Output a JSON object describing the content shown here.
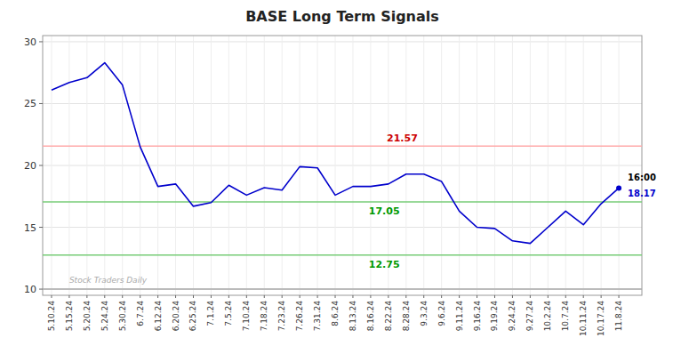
{
  "chart_data": {
    "type": "line",
    "title": "BASE Long Term Signals",
    "color": "#0000cc",
    "grid": true,
    "ylim": [
      9.5,
      30.5
    ],
    "yticks": [
      10,
      15,
      20,
      25,
      30
    ],
    "categories": [
      "5.10.24",
      "5.15.24",
      "5.20.24",
      "5.24.24",
      "5.30.24",
      "6.7.24",
      "6.12.24",
      "6.20.24",
      "6.25.24",
      "7.1.24",
      "7.5.24",
      "7.10.24",
      "7.18.24",
      "7.23.24",
      "7.26.24",
      "7.31.24",
      "8.6.24",
      "8.13.24",
      "8.16.24",
      "8.22.24",
      "8.28.24",
      "9.3.24",
      "9.6.24",
      "9.11.24",
      "9.16.24",
      "9.19.24",
      "9.24.24",
      "9.27.24",
      "10.2.24",
      "10.7.24",
      "10.11.24",
      "10.17.24",
      "11.8.24"
    ],
    "values": [
      26.1,
      26.7,
      27.1,
      28.3,
      26.5,
      21.5,
      18.3,
      18.5,
      16.7,
      17.0,
      18.4,
      17.6,
      18.2,
      18.0,
      19.9,
      19.8,
      17.6,
      18.3,
      18.3,
      18.5,
      19.3,
      19.3,
      18.7,
      16.3,
      15.0,
      14.9,
      13.9,
      13.7,
      15.0,
      16.3,
      15.2,
      16.9,
      18.17
    ],
    "hlines": [
      {
        "value": 21.57,
        "label": "21.57",
        "color": "#ffaaaa",
        "label_color": "#cc0000"
      },
      {
        "value": 17.05,
        "label": "17.05",
        "color": "#77cc77",
        "label_color": "#009900"
      },
      {
        "value": 12.75,
        "label": "12.75",
        "color": "#77cc77",
        "label_color": "#009900"
      },
      {
        "value": 10.0,
        "color": "#aaaaaa"
      }
    ],
    "annotations": [
      {
        "text": "16:00"
      },
      {
        "text": "18.17",
        "value": 18.17
      },
      {
        "text": "Stock Traders Daily"
      }
    ]
  }
}
